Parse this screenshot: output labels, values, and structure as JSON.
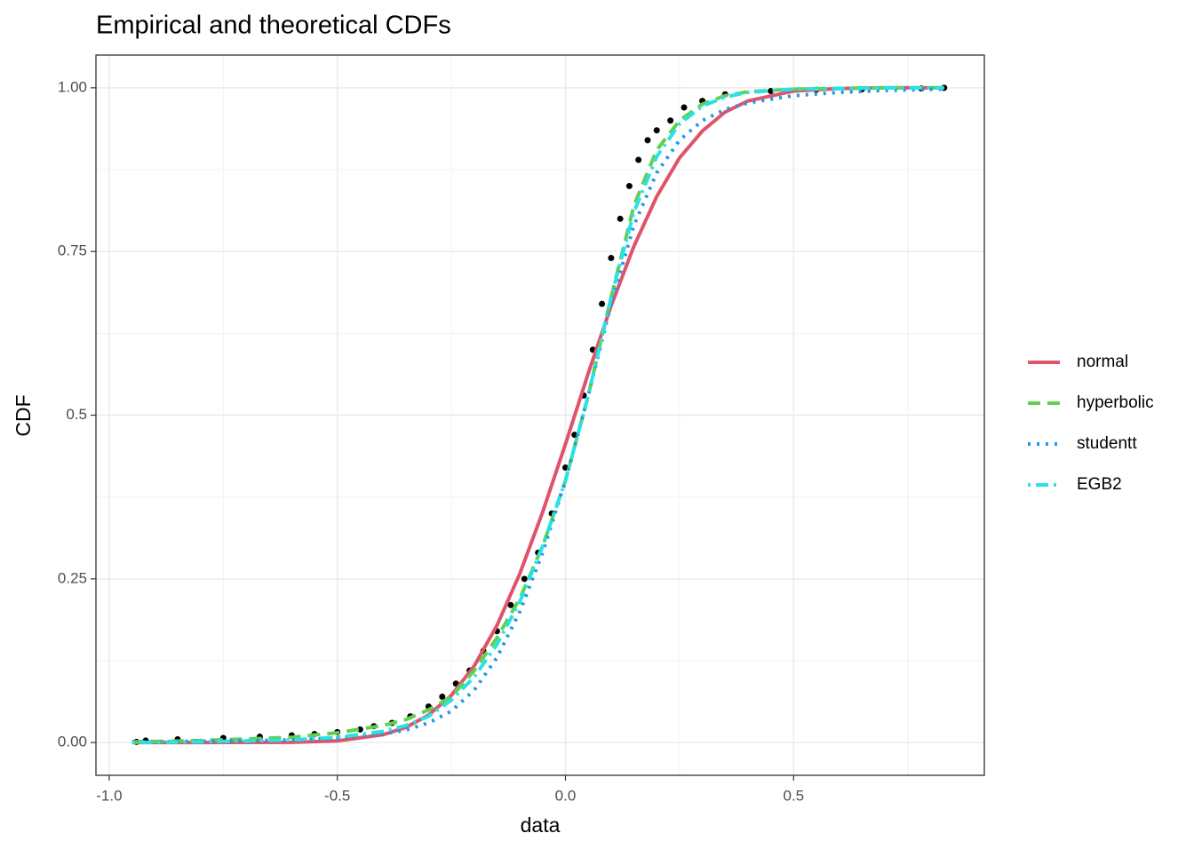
{
  "chart_data": {
    "type": "line",
    "title": "Empirical and theoretical CDFs",
    "x_label": "data",
    "y_label": "CDF",
    "xlim": [
      -1.029,
      0.918
    ],
    "ylim": [
      -0.05,
      1.05
    ],
    "xticks": [
      {
        "value": -1,
        "label": "-1.0"
      },
      {
        "value": -0.5,
        "label": "-0.5"
      },
      {
        "value": 0,
        "label": "0.0"
      },
      {
        "value": 0.5,
        "label": "0.5"
      }
    ],
    "yticks": [
      {
        "value": 0,
        "label": "0.00"
      },
      0.25,
      0.5,
      0.75,
      {
        "value": 1,
        "label": "1.00"
      }
    ],
    "x_minor_grid": [
      -0.75,
      -0.25,
      0.25,
      0.75
    ],
    "y_minor_grid": [
      0.125,
      0.375,
      0.625,
      0.875
    ],
    "grid": true,
    "legend": "right",
    "x": [
      -0.95,
      -0.8,
      -0.6,
      -0.5,
      -0.4,
      -0.35,
      -0.3,
      -0.25,
      -0.2,
      -0.15,
      -0.1,
      -0.05,
      0,
      0.05,
      0.1,
      0.15,
      0.2,
      0.25,
      0.3,
      0.35,
      0.4,
      0.5,
      0.6,
      0.7,
      0.83
    ],
    "series": [
      {
        "name": "normal",
        "color": "#DF536B",
        "dash": "solid",
        "values": [
          0,
          0,
          0.0004,
          0.0025,
          0.012,
          0.023,
          0.042,
          0.072,
          0.117,
          0.179,
          0.258,
          0.352,
          0.456,
          0.564,
          0.667,
          0.758,
          0.834,
          0.893,
          0.934,
          0.963,
          0.98,
          0.995,
          0.999,
          1,
          1
        ]
      },
      {
        "name": "hyperbolic",
        "color": "#61D04F",
        "dash": "dashed",
        "values": [
          0.001,
          0.003,
          0.008,
          0.015,
          0.026,
          0.035,
          0.05,
          0.07,
          0.11,
          0.16,
          0.22,
          0.3,
          0.4,
          0.53,
          0.68,
          0.82,
          0.905,
          0.95,
          0.975,
          0.988,
          0.994,
          0.998,
          0.999,
          1,
          1
        ]
      },
      {
        "name": "studentt",
        "color": "#2297E6",
        "dash": "dotted",
        "values": [
          0.001,
          0.002,
          0.004,
          0.007,
          0.013,
          0.019,
          0.03,
          0.048,
          0.08,
          0.13,
          0.2,
          0.29,
          0.4,
          0.53,
          0.67,
          0.79,
          0.87,
          0.92,
          0.95,
          0.967,
          0.977,
          0.988,
          0.993,
          0.996,
          0.998
        ]
      },
      {
        "name": "EGB2",
        "color": "#28E2E5",
        "dash": "dotdash",
        "values": [
          0,
          0.001,
          0.004,
          0.008,
          0.017,
          0.026,
          0.04,
          0.065,
          0.1,
          0.15,
          0.215,
          0.3,
          0.4,
          0.53,
          0.68,
          0.81,
          0.895,
          0.945,
          0.972,
          0.986,
          0.993,
          0.998,
          0.999,
          1,
          1
        ]
      }
    ],
    "points": {
      "color": "#000000",
      "x": [
        -0.94,
        -0.92,
        -0.85,
        -0.75,
        -0.67,
        -0.6,
        -0.55,
        -0.5,
        -0.45,
        -0.42,
        -0.38,
        -0.34,
        -0.3,
        -0.27,
        -0.24,
        -0.21,
        -0.18,
        -0.15,
        -0.12,
        -0.09,
        -0.06,
        -0.03,
        0,
        0.02,
        0.04,
        0.06,
        0.08,
        0.1,
        0.12,
        0.14,
        0.16,
        0.18,
        0.2,
        0.23,
        0.26,
        0.3,
        0.35,
        0.45,
        0.55,
        0.65,
        0.78,
        0.83
      ],
      "values": [
        0.001,
        0.003,
        0.005,
        0.007,
        0.009,
        0.011,
        0.013,
        0.016,
        0.02,
        0.025,
        0.03,
        0.04,
        0.055,
        0.07,
        0.09,
        0.11,
        0.14,
        0.17,
        0.21,
        0.25,
        0.29,
        0.35,
        0.42,
        0.47,
        0.53,
        0.6,
        0.67,
        0.74,
        0.8,
        0.85,
        0.89,
        0.92,
        0.935,
        0.95,
        0.97,
        0.98,
        0.99,
        0.995,
        0.997,
        0.998,
        0.999,
        1
      ]
    }
  }
}
